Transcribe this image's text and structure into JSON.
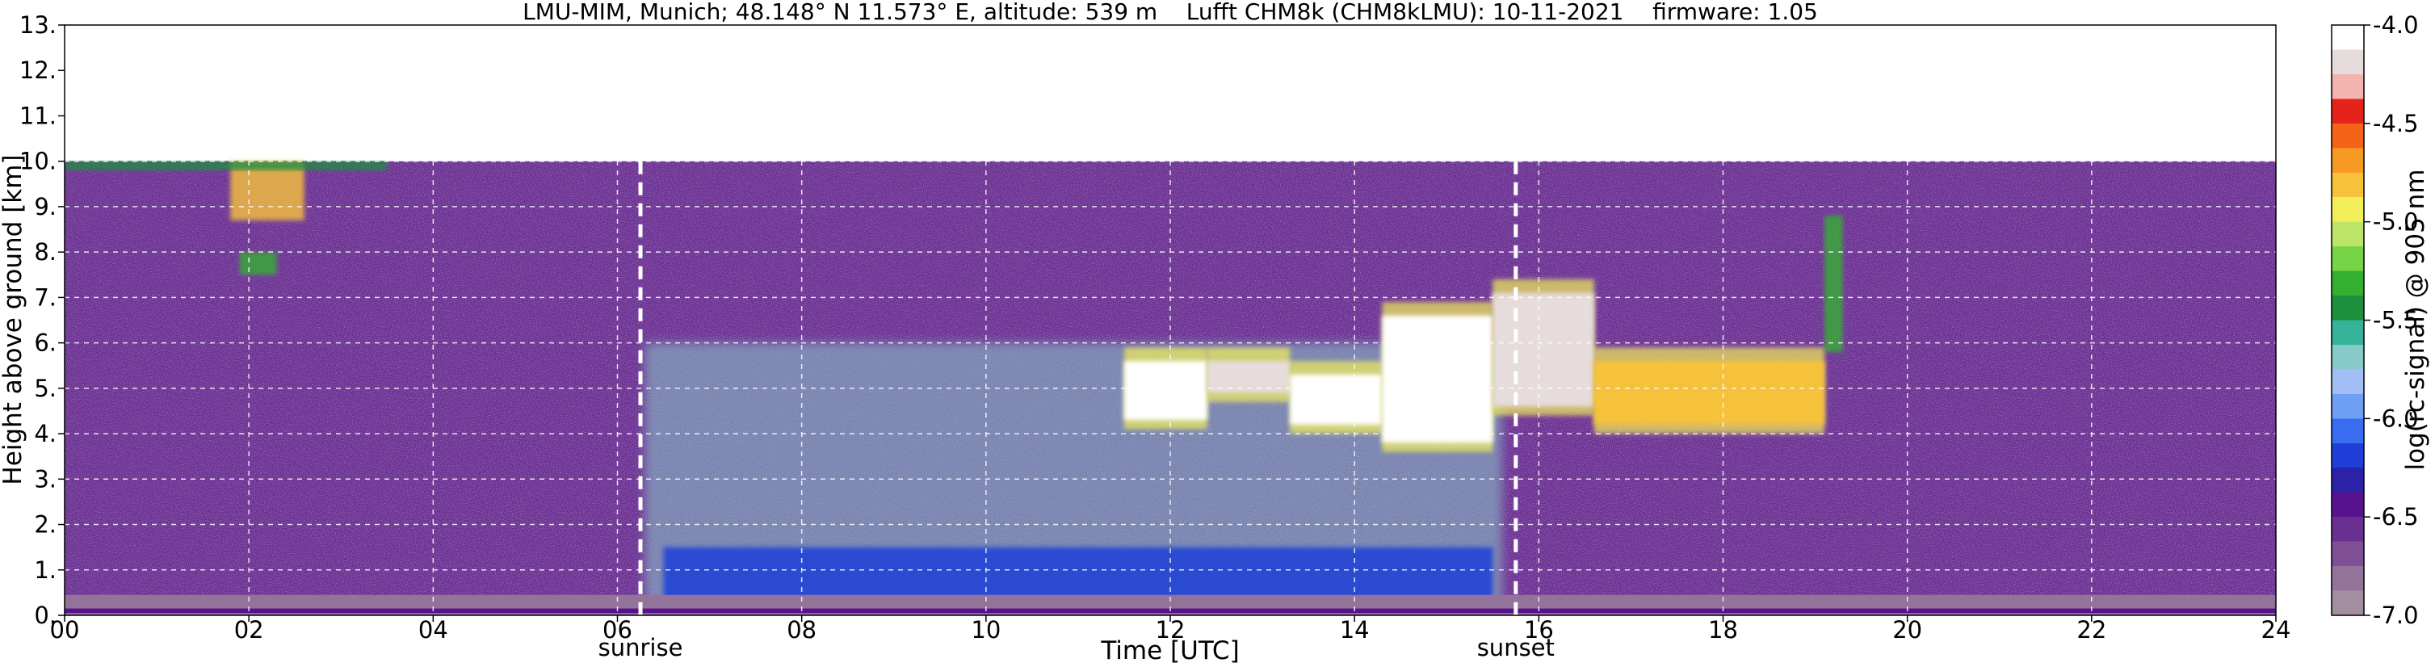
{
  "chart_data": {
    "type": "heatmap",
    "title": "LMU-MIM, Munich; 48.148° N 11.573° E, altitude: 539 m    Lufft CHM8k (CHM8kLMU): 10-11-2021    firmware: 1.05",
    "xlabel": "Time [UTC]",
    "ylabel": "Height above ground [km]",
    "colorbar_label": "log(rc-signal) @ 905 nm",
    "xlim": [
      0,
      24
    ],
    "ylim": [
      0,
      13
    ],
    "x_ticks": [
      0,
      2,
      4,
      6,
      8,
      10,
      12,
      14,
      16,
      18,
      20,
      22,
      24
    ],
    "x_tick_labels": [
      "00",
      "02",
      "04",
      "06",
      "08",
      "10",
      "12",
      "14",
      "16",
      "18",
      "20",
      "22",
      "24"
    ],
    "y_ticks": [
      0,
      1,
      2,
      3,
      4,
      5,
      6,
      7,
      8,
      9,
      10,
      11,
      12,
      13
    ],
    "y_tick_labels": [
      "0.",
      "1.",
      "2.",
      "3.",
      "4.",
      "5.",
      "6.",
      "7.",
      "8.",
      "9.",
      "10.",
      "11.",
      "12.",
      "13."
    ],
    "colorbar_range": [
      -7.0,
      -4.0
    ],
    "colorbar_ticks": [
      -7.0,
      -6.5,
      -6.0,
      -5.5,
      -5.0,
      -4.5,
      -4.0
    ],
    "colorbar_tick_labels": [
      "-7.0",
      "-6.5",
      "-6.0",
      "-5.5",
      "-5.0",
      "-4.5",
      "-4.0"
    ],
    "colormap": [
      "#a28ea0",
      "#93739a",
      "#7f4f96",
      "#6a2f92",
      "#57138e",
      "#2b22a8",
      "#1f3fd8",
      "#3a6cf0",
      "#6f9ef5",
      "#a3bdf5",
      "#88c9c9",
      "#35b49a",
      "#1d8f3d",
      "#34b030",
      "#77d447",
      "#bde668",
      "#f2ee5a",
      "#f7c23a",
      "#f79a24",
      "#f36418",
      "#e6231b",
      "#f3b4b0",
      "#e6dcdc",
      "#ffffff"
    ],
    "grid": true,
    "data_max_height_km": 10,
    "markers": [
      {
        "label": "sunrise",
        "x": 6.25
      },
      {
        "label": "sunset",
        "x": 15.75
      }
    ],
    "features": {
      "aerosol_layer": {
        "x_range": [
          0,
          24
        ],
        "top_km": 0.45,
        "value": -6.8
      },
      "daytime_boundary_layer": {
        "x_range": [
          6.5,
          15.5
        ],
        "top_km": 1.5,
        "value": -6.2
      },
      "daytime_noise_plume": {
        "x_range": [
          6.3,
          15.6
        ],
        "top_km": 6.0,
        "value": -5.7
      },
      "background_night": {
        "value": -6.6
      },
      "cloud_segments": [
        {
          "x": [
            11.5,
            12.4
          ],
          "base_km": 4.3,
          "top_km": 5.6,
          "value": -4.1
        },
        {
          "x": [
            12.4,
            13.3
          ],
          "base_km": 4.9,
          "top_km": 5.6,
          "value": -4.2
        },
        {
          "x": [
            13.3,
            14.3
          ],
          "base_km": 4.2,
          "top_km": 5.3,
          "value": -4.1
        },
        {
          "x": [
            14.3,
            15.5
          ],
          "base_km": 3.8,
          "top_km": 6.6,
          "value": -4.1
        },
        {
          "x": [
            15.5,
            16.6
          ],
          "base_km": 4.6,
          "top_km": 7.1,
          "value": -4.2
        },
        {
          "x": [
            16.6,
            19.1
          ],
          "base_km": 4.2,
          "top_km": 5.6,
          "value": -4.8
        }
      ],
      "high_cloud_fragments": [
        {
          "x": [
            1.8,
            2.6
          ],
          "base_km": 8.7,
          "top_km": 10.0,
          "value": -4.8
        },
        {
          "x": [
            1.9,
            2.3
          ],
          "base_km": 7.5,
          "top_km": 8.0,
          "value": -5.3
        },
        {
          "x": [
            0.0,
            3.5
          ],
          "base_km": 9.8,
          "top_km": 10.0,
          "value": -5.5
        },
        {
          "x": [
            19.1,
            19.3
          ],
          "base_km": 5.8,
          "top_km": 8.8,
          "value": -5.3
        }
      ]
    }
  }
}
